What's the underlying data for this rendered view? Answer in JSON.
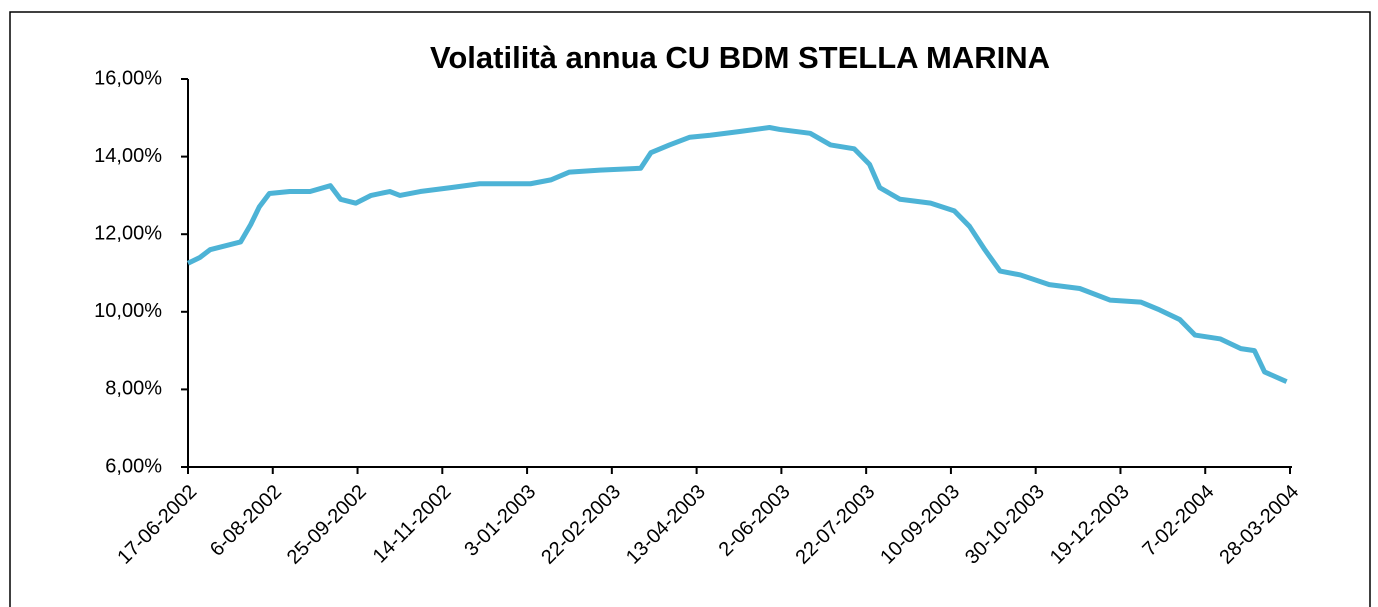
{
  "chart_data": {
    "type": "line",
    "title": "Volatilità annua CU BDM STELLA MARINA",
    "x": [
      "17-06-2002",
      "24-06-2002",
      "30-06-2002",
      "9-07-2002",
      "18-07-2002",
      "24-07-2002",
      "29-07-2002",
      "4-08-2002",
      "16-08-2002",
      "28-08-2002",
      "9-09-2002",
      "15-09-2002",
      "24-09-2002",
      "3-10-2002",
      "14-10-2002",
      "20-10-2002",
      "1-11-2002",
      "19-11-2002",
      "6-12-2002",
      "5-01-2003",
      "17-01-2003",
      "28-01-2003",
      "15-02-2003",
      "11-03-2003",
      "17-03-2003",
      "28-03-2003",
      "9-04-2003",
      "21-04-2003",
      "9-05-2003",
      "26-05-2003",
      "1-06-2003",
      "19-06-2003",
      "1-07-2003",
      "15-07-2003",
      "24-07-2003",
      "30-07-2003",
      "11-08-2003",
      "29-08-2003",
      "12-09-2003",
      "21-09-2003",
      "30-09-2003",
      "9-10-2003",
      "21-10-2003",
      "7-11-2003",
      "25-11-2003",
      "13-12-2003",
      "31-12-2003",
      "11-01-2004",
      "23-01-2004",
      "1-02-2004",
      "16-02-2004",
      "28-02-2004",
      "7-03-2004",
      "13-03-2004",
      "26-03-2004"
    ],
    "series": [
      {
        "name": "Volatilità annua",
        "color": "#4db3d6",
        "values": [
          11.25,
          11.4,
          11.6,
          11.7,
          11.8,
          12.25,
          12.7,
          13.05,
          13.1,
          13.1,
          13.25,
          12.9,
          12.8,
          13.0,
          13.1,
          13.0,
          13.1,
          13.2,
          13.3,
          13.3,
          13.4,
          13.6,
          13.65,
          13.7,
          14.1,
          14.3,
          14.5,
          14.55,
          14.65,
          14.75,
          14.7,
          14.6,
          14.3,
          14.2,
          13.8,
          13.2,
          12.9,
          12.8,
          12.6,
          12.2,
          11.6,
          11.05,
          10.95,
          10.7,
          10.6,
          10.3,
          10.25,
          10.05,
          9.8,
          9.4,
          9.3,
          9.05,
          9.0,
          8.45,
          8.2
        ]
      }
    ],
    "ylim": [
      6,
      16
    ],
    "yticks": [
      {
        "value": 6,
        "label": "6,00%"
      },
      {
        "value": 8,
        "label": "8,00%"
      },
      {
        "value": 10,
        "label": "10,00%"
      },
      {
        "value": 12,
        "label": "12,00%"
      },
      {
        "value": 14,
        "label": "14,00%"
      },
      {
        "value": 16,
        "label": "16,00%"
      }
    ],
    "xlim": [
      "17-06-2002",
      "28-03-2004"
    ],
    "xticks": [
      "17-06-2002",
      "6-08-2002",
      "25-09-2002",
      "14-11-2002",
      "3-01-2003",
      "22-02-2003",
      "13-04-2003",
      "2-06-2003",
      "22-07-2003",
      "10-09-2003",
      "30-10-2003",
      "19-12-2003",
      "7-02-2004",
      "28-03-2004"
    ]
  }
}
